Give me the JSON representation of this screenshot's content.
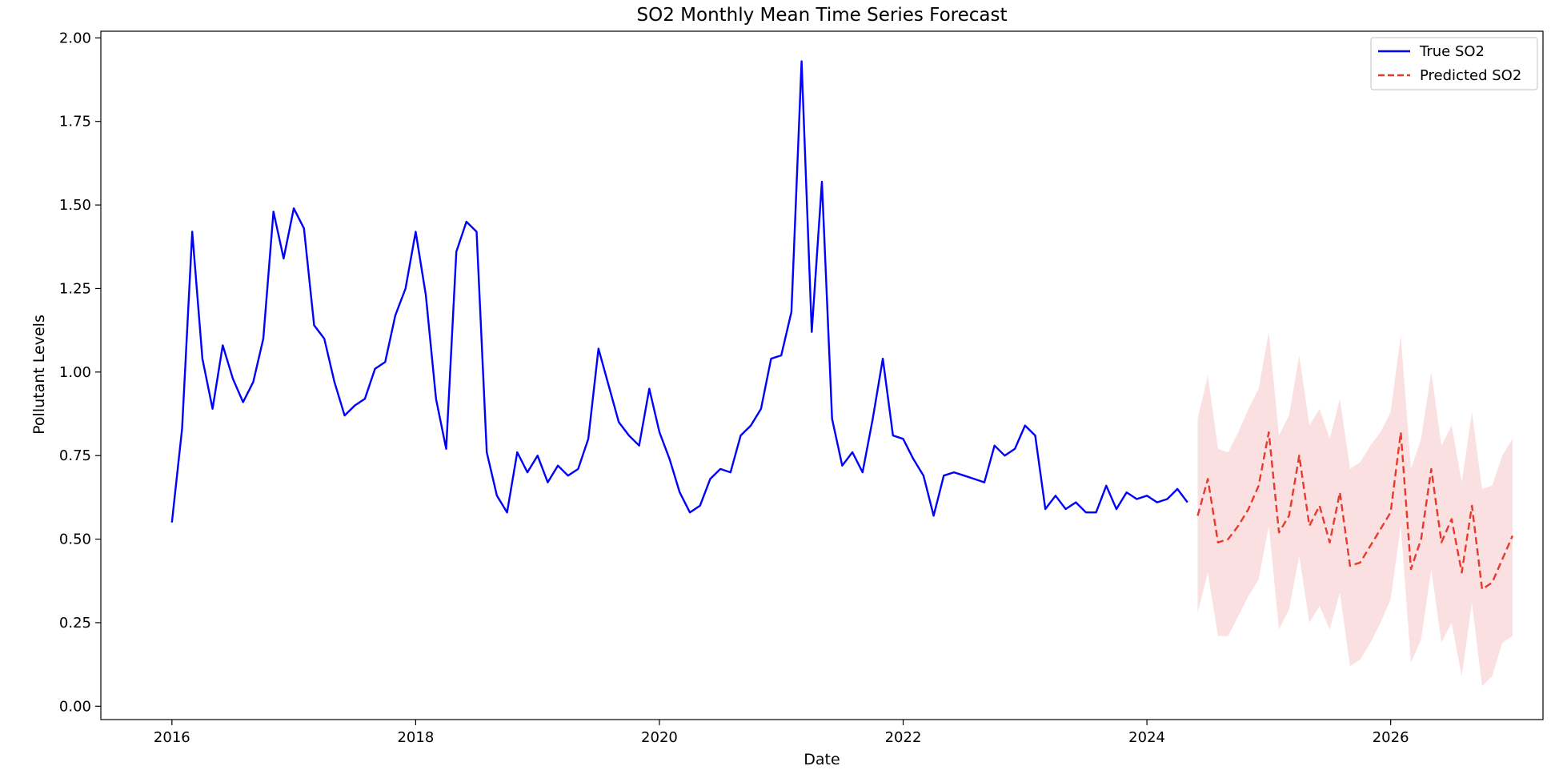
{
  "chart_data": {
    "type": "line",
    "title": "SO2 Monthly Mean Time Series Forecast",
    "xlabel": "Date",
    "ylabel": "Pollutant Levels",
    "xlim": [
      "2015-06",
      "2027-04"
    ],
    "ylim": [
      -0.04,
      2.02
    ],
    "x_ticks": [
      "2016",
      "2018",
      "2020",
      "2022",
      "2024",
      "2026"
    ],
    "y_ticks": [
      "0.00",
      "0.25",
      "0.50",
      "0.75",
      "1.00",
      "1.25",
      "1.50",
      "1.75",
      "2.00"
    ],
    "grid": false,
    "legend": "upper right",
    "series": [
      {
        "name": "True SO2",
        "color": "#0000ff",
        "style": "solid",
        "start": "2016-01",
        "values": [
          0.55,
          0.83,
          1.42,
          1.04,
          0.89,
          1.08,
          0.98,
          0.91,
          0.97,
          1.1,
          1.48,
          1.34,
          1.49,
          1.43,
          1.14,
          1.1,
          0.97,
          0.87,
          0.9,
          0.92,
          1.01,
          1.03,
          1.17,
          1.25,
          1.42,
          1.23,
          0.92,
          0.77,
          1.36,
          1.45,
          1.42,
          0.76,
          0.63,
          0.58,
          0.76,
          0.7,
          0.75,
          0.67,
          0.72,
          0.69,
          0.71,
          0.8,
          1.07,
          0.96,
          0.85,
          0.81,
          0.78,
          0.95,
          0.82,
          0.74,
          0.64,
          0.58,
          0.6,
          0.68,
          0.71,
          0.7,
          0.81,
          0.84,
          0.89,
          1.04,
          1.05,
          1.18,
          1.93,
          1.12,
          1.57,
          0.86,
          0.72,
          0.76,
          0.7,
          0.86,
          1.04,
          0.81,
          0.8,
          0.74,
          0.69,
          0.57,
          0.69,
          0.7,
          0.69,
          0.68,
          0.67,
          0.78,
          0.75,
          0.77,
          0.84,
          0.81,
          0.59,
          0.63,
          0.59,
          0.61,
          0.58,
          0.58,
          0.66,
          0.59,
          0.64,
          0.62,
          0.63,
          0.61,
          0.62,
          0.65,
          0.61
        ]
      },
      {
        "name": "Predicted SO2",
        "color": "#e8392c",
        "style": "dashed",
        "start": "2024-06",
        "values": [
          0.57,
          0.68,
          0.49,
          0.5,
          0.54,
          0.59,
          0.66,
          0.82,
          0.52,
          0.57,
          0.75,
          0.54,
          0.6,
          0.49,
          0.64,
          0.42,
          0.43,
          0.48,
          0.53,
          0.58,
          0.82,
          0.41,
          0.5,
          0.71,
          0.49,
          0.56,
          0.4,
          0.6,
          0.35,
          0.37,
          0.44,
          0.51
        ],
        "lower": [
          0.28,
          0.4,
          0.21,
          0.21,
          0.27,
          0.33,
          0.38,
          0.54,
          0.23,
          0.29,
          0.45,
          0.25,
          0.3,
          0.23,
          0.34,
          0.12,
          0.14,
          0.19,
          0.25,
          0.32,
          0.54,
          0.13,
          0.2,
          0.41,
          0.19,
          0.25,
          0.09,
          0.31,
          0.06,
          0.09,
          0.19,
          0.21
        ],
        "upper": [
          0.86,
          0.99,
          0.77,
          0.76,
          0.82,
          0.89,
          0.95,
          1.12,
          0.81,
          0.87,
          1.05,
          0.84,
          0.89,
          0.8,
          0.92,
          0.71,
          0.73,
          0.78,
          0.82,
          0.88,
          1.11,
          0.71,
          0.8,
          1.0,
          0.78,
          0.84,
          0.67,
          0.88,
          0.65,
          0.66,
          0.75,
          0.8
        ],
        "band_color": "#f6c6c6"
      }
    ]
  }
}
